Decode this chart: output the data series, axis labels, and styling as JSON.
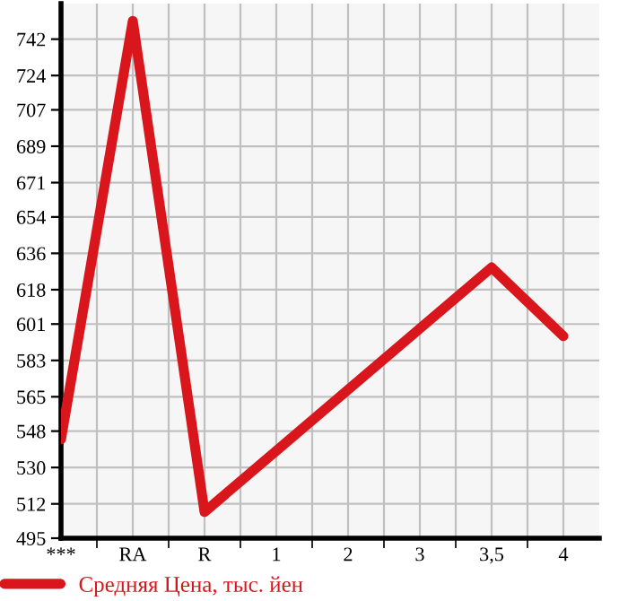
{
  "chart_data": {
    "type": "line",
    "categories": [
      "***",
      "RA",
      "R",
      "1",
      "2",
      "3",
      "3,5",
      "4"
    ],
    "series": [
      {
        "name": "Средняя Цена, тыс. йен",
        "color": "#d9161c",
        "values": [
          544,
          751,
          508,
          null,
          null,
          null,
          629,
          595
        ]
      }
    ],
    "ylim": [
      495,
      759.6
    ],
    "yticks": [
      495,
      512,
      530,
      548,
      565,
      583,
      601,
      618,
      636,
      654,
      671,
      689,
      707,
      724,
      742
    ],
    "grid": true,
    "legend": "bottom",
    "marker": "none",
    "line_style": "solid"
  }
}
